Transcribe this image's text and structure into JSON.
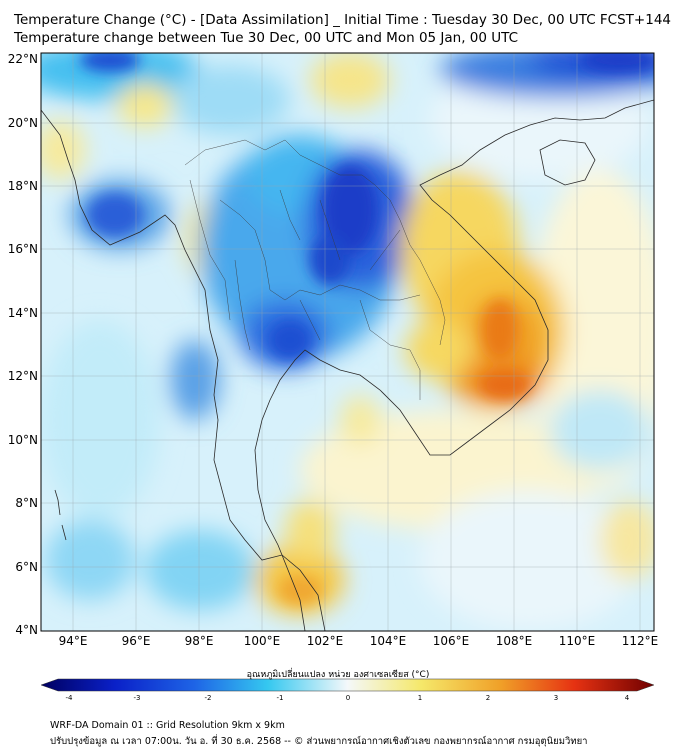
{
  "title_line1": "Temperature Change (°C) - [Data Assimilation] _ Initial Time : Tuesday 30 Dec, 00 UTC FCST+144",
  "title_line2": "Temperature change between Tue 30 Dec, 00 UTC and Mon 05 Jan, 00 UTC",
  "lat_labels": [
    "22°N",
    "20°N",
    "18°N",
    "16°N",
    "14°N",
    "12°N",
    "10°N",
    "8°N",
    "6°N",
    "4°N"
  ],
  "lon_labels": [
    "94°E",
    "96°E",
    "98°E",
    "100°E",
    "102°E",
    "104°E",
    "106°E",
    "108°E",
    "110°E",
    "112°E"
  ],
  "colorbar": {
    "label": "อุณหภูมิเปลี่ยนแปลง หน่วย องศาเซลเซียส (°C)",
    "ticks": [
      "-4",
      "-3",
      "-2",
      "-1",
      "0",
      "1",
      "2",
      "3",
      "4"
    ],
    "min": -4,
    "max": 4
  },
  "footer_line1": "WRF-DA Domain 01 :: Grid Resolution 9km x 9km",
  "footer_line2": "ปรับปรุงข้อมูล ณ เวลา 07:00น. วัน อ. ที่ 30 ธ.ค. 2568 -- © ส่วนพยากรณ์อากาศเชิงตัวเลข กองพยากรณ์อากาศ กรมอุตุนิยมวิทยา",
  "colors": {
    "cold_extreme": "#000080",
    "cold": "#1e5adc",
    "cool": "#35c8f0",
    "neutral": "#f4f8fa",
    "warm": "#f5e05a",
    "hot": "#f08214",
    "hot_extreme": "#800000"
  }
}
